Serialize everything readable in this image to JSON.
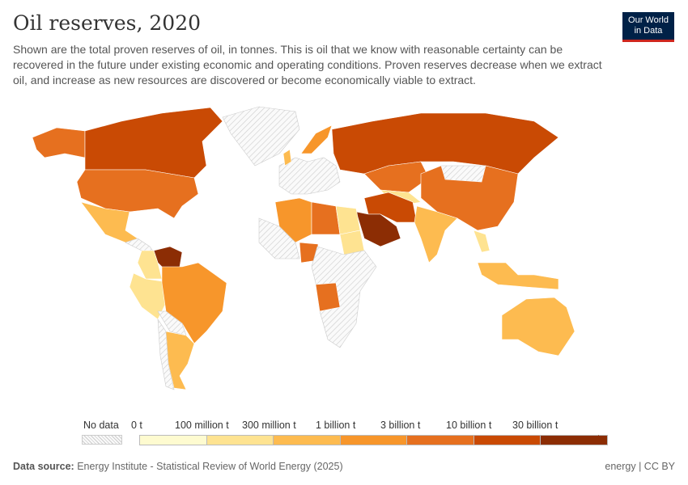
{
  "header": {
    "title": "Oil reserves, 2020",
    "subtitle": "Shown are the total proven reserves of oil, in tonnes. This is oil that we know with reasonable certainty can be recovered in the future under existing economic and operating conditions. Proven reserves decrease when we extract oil, and increase as new resources are discovered or become economically viable to extract."
  },
  "logo": {
    "line1": "Our World",
    "line2": "in Data"
  },
  "legend": {
    "no_data": "No data",
    "labels": [
      "0 t",
      "100 million t",
      "300 million t",
      "1 billion t",
      "3 billion t",
      "10 billion t",
      "30 billion t"
    ],
    "colors": [
      "#fefbd0",
      "#fee391",
      "#fdbb50",
      "#f7962b",
      "#e6701f",
      "#c94a04",
      "#8c2d04"
    ],
    "no_data_color": "#e0e0e0"
  },
  "footer": {
    "source_label": "Data source:",
    "source": "Energy Institute - Statistical Review of World Energy (2025)",
    "license": "energy | CC BY"
  }
}
